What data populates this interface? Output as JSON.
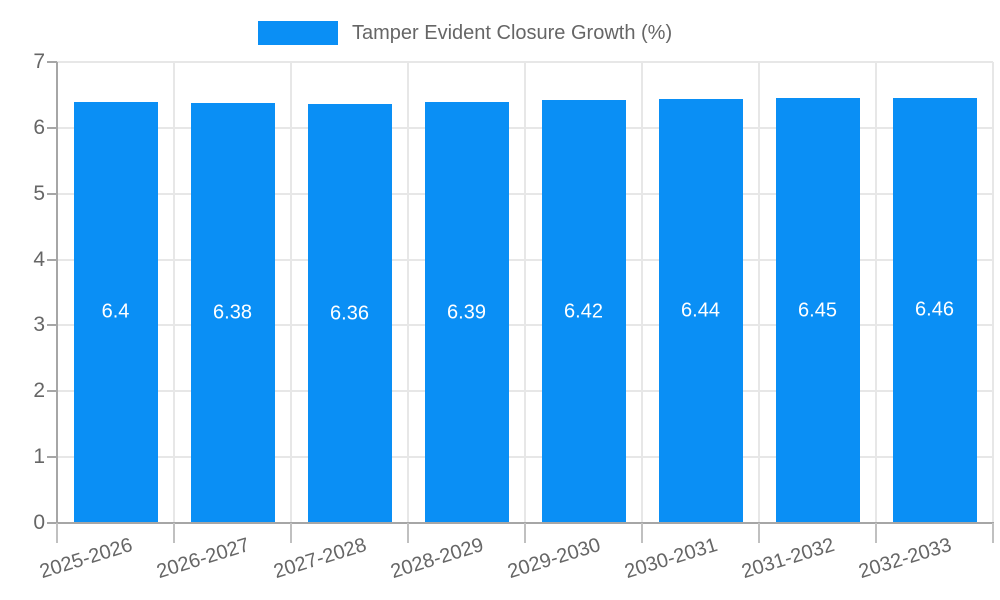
{
  "legend": {
    "label": "Tamper Evident Closure Growth (%)"
  },
  "chart_data": {
    "type": "bar",
    "title": "",
    "categories": [
      "2025-2026",
      "2026-2027",
      "2027-2028",
      "2028-2029",
      "2029-2030",
      "2030-2031",
      "2031-2032",
      "2032-2033"
    ],
    "series": [
      {
        "name": "Tamper Evident Closure Growth (%)",
        "values": [
          6.4,
          6.38,
          6.36,
          6.39,
          6.42,
          6.44,
          6.45,
          6.46
        ],
        "value_labels": [
          "6.4",
          "6.38",
          "6.36",
          "6.39",
          "6.42",
          "6.44",
          "6.45",
          "6.46"
        ]
      }
    ],
    "xlabel": "",
    "ylabel": "",
    "ylim": [
      0,
      7
    ],
    "yticks": [
      0,
      1,
      2,
      3,
      4,
      5,
      6,
      7
    ],
    "grid": true,
    "legend_position": "top",
    "colors": {
      "bar": "#0a8ff5",
      "value_label": "#ffffff",
      "axis_text": "#666666",
      "grid_line": "#e7e7e7",
      "axis_line": "#a6a6a6"
    }
  }
}
